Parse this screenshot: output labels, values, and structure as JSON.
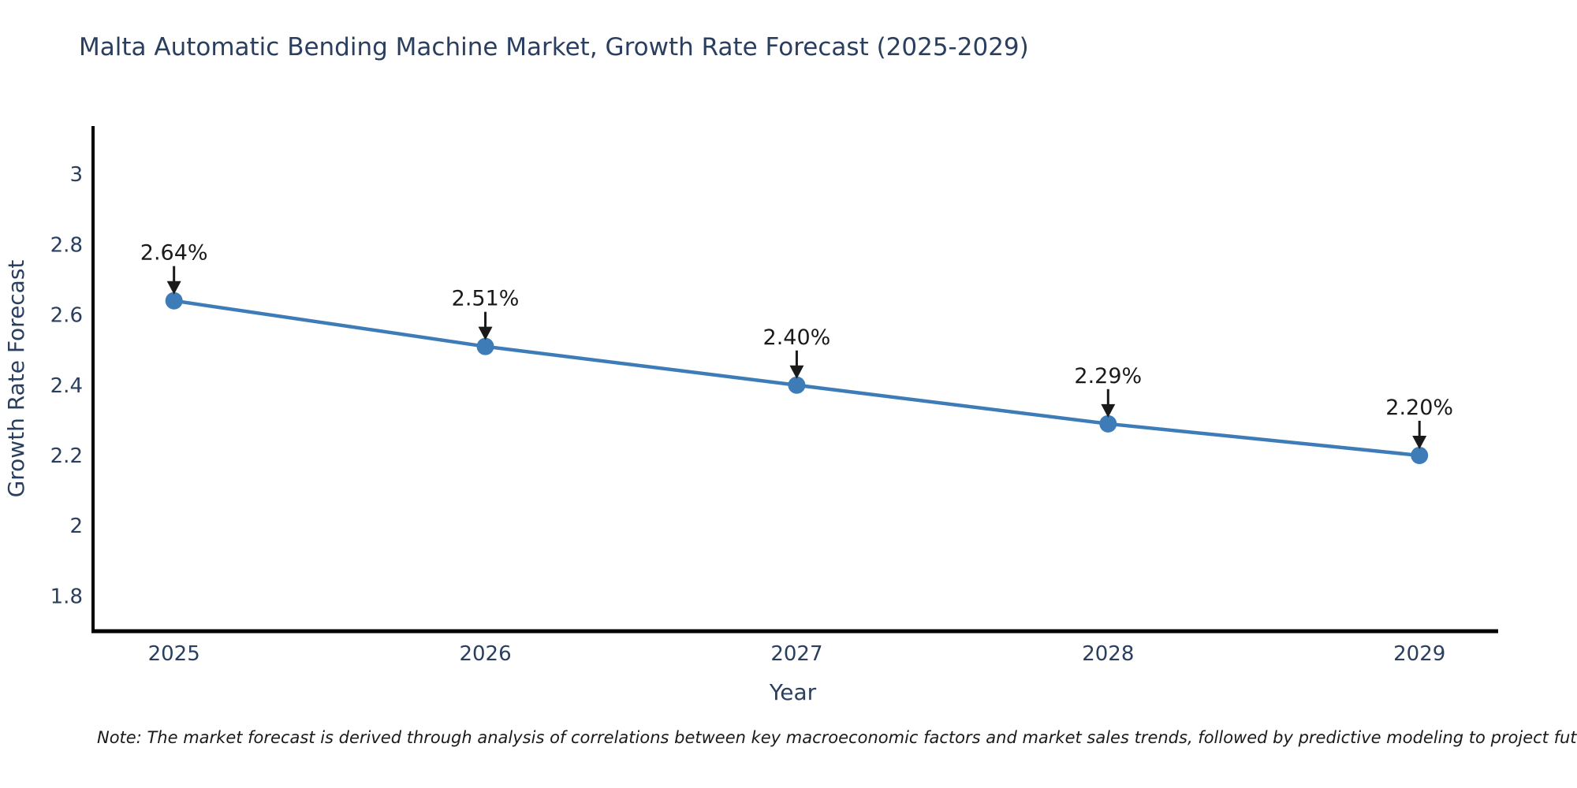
{
  "title": "Malta Automatic Bending Machine Market, Growth Rate Forecast (2025-2029)",
  "note": "Note: The market forecast is derived through analysis of correlations between key macroeconomic factors and market sales trends, followed by predictive modeling to project future sales",
  "chart_data": {
    "type": "line",
    "title": "Malta Automatic Bending Machine Market, Growth Rate Forecast (2025-2029)",
    "x": [
      2025,
      2026,
      2027,
      2028,
      2029
    ],
    "values": [
      2.64,
      2.51,
      2.4,
      2.29,
      2.2
    ],
    "point_labels": [
      "2.64%",
      "2.51%",
      "2.40%",
      "2.29%",
      "2.20%"
    ],
    "xlabel": "Year",
    "ylabel": "Growth Rate Forecast",
    "x_tick_labels": [
      "2025",
      "2026",
      "2027",
      "2028",
      "2029"
    ],
    "y_tick_values": [
      3,
      2.8,
      2.6,
      2.4,
      2.2,
      2,
      1.8
    ],
    "y_tick_labels": [
      "3",
      "2.8",
      "2.6",
      "2.4",
      "2.2",
      "2",
      "1.8"
    ],
    "xlim": [
      2024.74,
      2029.235
    ],
    "ylim": [
      1.7,
      3.137
    ],
    "grid": false,
    "legend": "none",
    "line_color": "#3e7cb8",
    "marker_color": "#3e7cb8",
    "axis_color": "#000000",
    "tick_text_color": "#2a3f5f",
    "annotation_color": "#1a1a1a"
  }
}
